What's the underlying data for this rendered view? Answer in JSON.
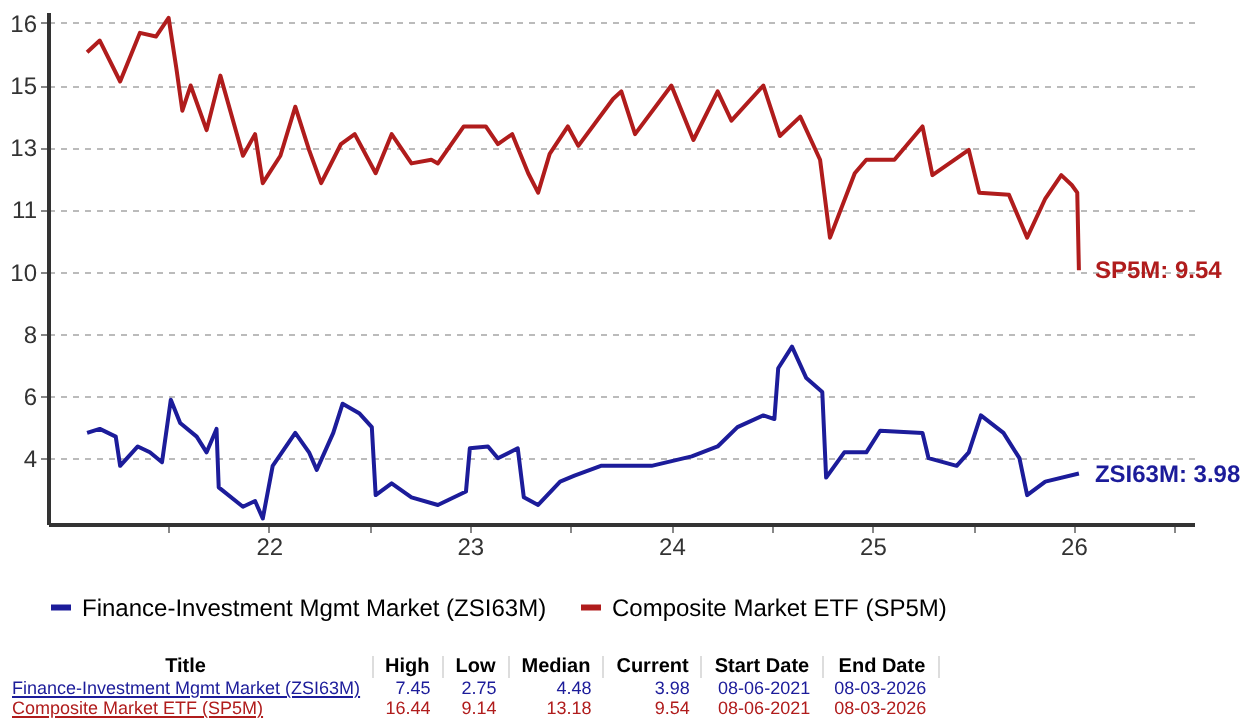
{
  "chart_data": {
    "type": "line",
    "xlim": [
      "2021-05-27",
      "2027-02-06"
    ],
    "ylim": [
      2.6,
      16.6
    ],
    "xticks": [
      {
        "value": "2022-01-01",
        "label": null
      },
      {
        "value": "2022-07-02",
        "label": "22"
      },
      {
        "value": "2023-01-01",
        "label": null
      },
      {
        "value": "2023-07-02",
        "label": "23"
      },
      {
        "value": "2024-01-01",
        "label": null
      },
      {
        "value": "2024-07-02",
        "label": "24"
      },
      {
        "value": "2025-01-01",
        "label": null
      },
      {
        "value": "2025-07-02",
        "label": "25"
      },
      {
        "value": "2026-01-01",
        "label": null
      },
      {
        "value": "2026-07-02",
        "label": "26"
      },
      {
        "value": "2027-01-01",
        "label": null
      }
    ],
    "yticks": [
      {
        "value": 4.4,
        "label": "4"
      },
      {
        "value": 6.1,
        "label": "6"
      },
      {
        "value": 7.8,
        "label": "8"
      },
      {
        "value": 9.5,
        "label": "10"
      },
      {
        "value": 11.2,
        "label": "11"
      },
      {
        "value": 12.9,
        "label": "13"
      },
      {
        "value": 14.6,
        "label": "15"
      },
      {
        "value": 16.3,
        "label": "16"
      }
    ],
    "grid": true,
    "legend": "bottom",
    "line_style": "solid",
    "series": [
      {
        "name": "Finance-Investment Mgmt Market (ZSI63M)",
        "color": "#1c1c9a",
        "x": [
          "2021-08-06",
          "2021-08-29",
          "2021-09-27",
          "2021-10-05",
          "2021-11-06",
          "2021-11-28",
          "2021-12-20",
          "2022-01-05",
          "2022-01-22",
          "2022-02-21",
          "2022-03-11",
          "2022-03-29",
          "2022-04-02",
          "2022-05-16",
          "2022-06-07",
          "2022-06-21",
          "2022-07-09",
          "2022-08-19",
          "2022-09-13",
          "2022-09-27",
          "2022-10-27",
          "2022-11-13",
          "2022-12-13",
          "2023-01-05",
          "2023-01-12",
          "2023-02-10",
          "2023-03-18",
          "2023-05-05",
          "2023-06-25",
          "2023-07-02",
          "2023-08-04",
          "2023-08-22",
          "2023-09-27",
          "2023-10-08",
          "2023-11-03",
          "2023-12-13",
          "2024-01-08",
          "2024-02-25",
          "2024-05-27",
          "2024-08-08",
          "2024-09-24",
          "2024-10-30",
          "2024-12-16",
          "2025-01-05",
          "2025-01-12",
          "2025-02-06",
          "2025-03-04",
          "2025-04-02",
          "2025-04-09",
          "2025-05-12",
          "2025-06-21",
          "2025-07-16",
          "2025-10-01",
          "2025-10-12",
          "2025-12-02",
          "2025-12-24",
          "2026-01-15",
          "2026-02-25",
          "2026-03-26",
          "2026-04-09",
          "2026-05-12",
          "2026-07-12"
        ],
        "values": [
          5.09,
          5.2,
          4.99,
          4.19,
          4.72,
          4.56,
          4.29,
          6.0,
          5.36,
          4.99,
          4.56,
          5.2,
          3.6,
          3.07,
          3.23,
          2.75,
          4.19,
          5.09,
          4.56,
          4.08,
          5.09,
          5.89,
          5.63,
          5.25,
          3.39,
          3.71,
          3.33,
          3.12,
          3.49,
          4.67,
          4.72,
          4.4,
          4.67,
          3.33,
          3.12,
          3.76,
          3.92,
          4.19,
          4.19,
          4.45,
          4.72,
          5.25,
          5.57,
          5.47,
          6.86,
          7.45,
          6.59,
          6.21,
          3.87,
          4.56,
          4.56,
          5.15,
          5.09,
          4.4,
          4.19,
          4.56,
          5.57,
          5.09,
          4.4,
          3.39,
          3.76,
          3.98
        ]
      },
      {
        "name": "Composite Market ETF (SP5M)",
        "color": "#b01c1c",
        "x": [
          "2021-08-06",
          "2021-08-29",
          "2021-10-05",
          "2021-11-10",
          "2021-12-09",
          "2022-01-01",
          "2022-01-15",
          "2022-01-26",
          "2022-02-10",
          "2022-03-11",
          "2022-04-05",
          "2022-05-16",
          "2022-06-07",
          "2022-06-21",
          "2022-07-23",
          "2022-08-19",
          "2022-09-13",
          "2022-10-05",
          "2022-11-10",
          "2022-12-05",
          "2023-01-12",
          "2023-02-10",
          "2023-03-18",
          "2023-04-23",
          "2023-05-05",
          "2023-06-21",
          "2023-07-31",
          "2023-08-22",
          "2023-09-17",
          "2023-10-16",
          "2023-11-03",
          "2023-11-24",
          "2023-12-27",
          "2024-01-15",
          "2024-03-18",
          "2024-04-02",
          "2024-04-27",
          "2024-07-02",
          "2024-08-11",
          "2024-09-24",
          "2024-10-19",
          "2024-12-16",
          "2025-01-15",
          "2025-02-21",
          "2025-03-29",
          "2025-04-16",
          "2025-05-31",
          "2025-06-21",
          "2025-08-11",
          "2025-10-01",
          "2025-10-19",
          "2025-12-24",
          "2026-01-12",
          "2026-03-07",
          "2026-04-09",
          "2026-05-12",
          "2026-06-10",
          "2026-06-29",
          "2026-07-09",
          "2026-07-12"
        ],
        "values": [
          15.5,
          15.82,
          14.7,
          16.03,
          15.93,
          16.44,
          15.07,
          13.9,
          14.59,
          13.37,
          14.86,
          12.67,
          13.26,
          11.92,
          12.67,
          14.01,
          12.83,
          11.92,
          12.99,
          13.26,
          12.19,
          13.26,
          12.46,
          12.56,
          12.46,
          13.47,
          13.47,
          12.99,
          13.26,
          12.19,
          11.66,
          12.72,
          13.47,
          12.94,
          14.22,
          14.43,
          13.26,
          14.59,
          13.1,
          14.43,
          13.63,
          14.59,
          13.21,
          13.74,
          12.56,
          10.43,
          12.19,
          12.56,
          12.56,
          13.47,
          12.14,
          12.83,
          11.66,
          11.6,
          10.43,
          11.5,
          12.14,
          11.87,
          11.66,
          9.54
        ]
      }
    ],
    "annotations": [
      {
        "text": "SP5M: 9.54",
        "x": "2026-07-12",
        "y": 9.54
      },
      {
        "text": "ZSI63M: 3.98",
        "x": "2026-07-12",
        "y": 3.98
      },
      "Title",
      "High",
      "Low",
      "Median",
      "Current",
      "Start Date",
      "End Date",
      "Finance-Investment Mgmt Market (ZSI63M)",
      "7.45",
      "2.75",
      "4.48",
      "3.98",
      "08-06-2021",
      "08-03-2026",
      "Composite Market ETF (SP5M)",
      "16.44",
      "9.14",
      "13.18",
      "9.54",
      "08-06-2021",
      "08-03-2026"
    ]
  }
}
